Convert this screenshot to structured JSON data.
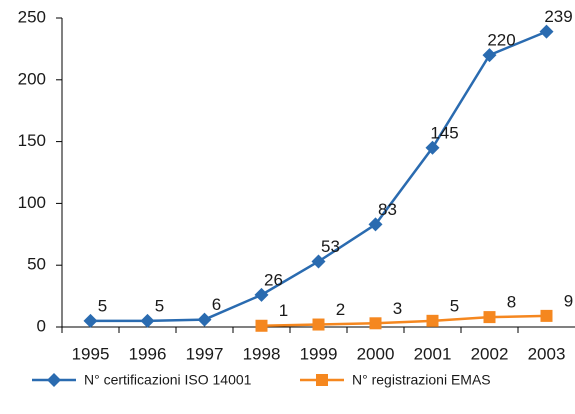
{
  "chart_data": {
    "type": "line",
    "categories": [
      "1995",
      "1996",
      "1997",
      "1998",
      "1999",
      "2000",
      "2001",
      "2002",
      "2003"
    ],
    "series": [
      {
        "name": "N° certificazioni ISO 14001",
        "color": "#2a6bb0",
        "marker": "diamond",
        "values": [
          5,
          5,
          6,
          26,
          53,
          83,
          145,
          220,
          239
        ]
      },
      {
        "name": "N° registrazioni EMAS",
        "color": "#f5871f",
        "marker": "square",
        "values": [
          null,
          null,
          null,
          1,
          2,
          3,
          5,
          8,
          9
        ]
      }
    ],
    "ylim": [
      0,
      250
    ],
    "yticks": [
      0,
      50,
      100,
      150,
      200,
      250
    ],
    "grid": false,
    "legend": "bottom"
  }
}
